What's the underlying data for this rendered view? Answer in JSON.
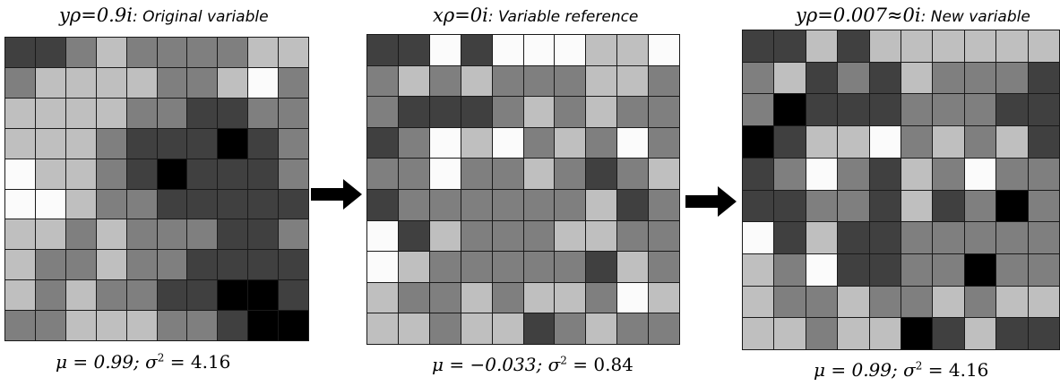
{
  "panels": [
    {
      "symbol": "y",
      "sub": "i",
      "sup": "ρ=0.9",
      "label": ": Original variable",
      "stats_mu": "μ = 0.99; ",
      "stats_sigma": "σ",
      "stats_sigma_sup": "2",
      "stats_sigma_rest": " = 4.16",
      "grid": [
        [
          4,
          4,
          3,
          2,
          3,
          3,
          3,
          3,
          2,
          2
        ],
        [
          3,
          2,
          2,
          2,
          2,
          3,
          3,
          2,
          1,
          3
        ],
        [
          2,
          2,
          2,
          2,
          3,
          3,
          4,
          4,
          3,
          3
        ],
        [
          2,
          2,
          2,
          3,
          4,
          4,
          4,
          5,
          4,
          3
        ],
        [
          1,
          2,
          2,
          3,
          4,
          5,
          4,
          4,
          4,
          3
        ],
        [
          1,
          1,
          2,
          3,
          3,
          4,
          4,
          4,
          4,
          4
        ],
        [
          2,
          2,
          3,
          2,
          3,
          3,
          3,
          4,
          4,
          3
        ],
        [
          2,
          3,
          3,
          2,
          3,
          3,
          4,
          4,
          4,
          4
        ],
        [
          2,
          3,
          2,
          3,
          3,
          4,
          4,
          5,
          5,
          4
        ],
        [
          3,
          3,
          2,
          2,
          2,
          3,
          3,
          4,
          5,
          5
        ]
      ]
    },
    {
      "symbol": "x",
      "sub": "i",
      "sup": "ρ=0",
      "label": ": Variable reference",
      "stats_mu": "μ = −0.033; ",
      "stats_sigma": "σ",
      "stats_sigma_sup": "2",
      "stats_sigma_rest": " = 0.84",
      "grid": [
        [
          4,
          4,
          1,
          4,
          1,
          1,
          1,
          2,
          2,
          1
        ],
        [
          3,
          2,
          3,
          2,
          3,
          3,
          3,
          2,
          2,
          3
        ],
        [
          3,
          4,
          4,
          4,
          3,
          2,
          3,
          2,
          3,
          3
        ],
        [
          4,
          3,
          1,
          2,
          1,
          3,
          2,
          3,
          1,
          3
        ],
        [
          3,
          3,
          1,
          3,
          3,
          2,
          3,
          4,
          3,
          2
        ],
        [
          4,
          3,
          3,
          3,
          3,
          3,
          3,
          2,
          4,
          3
        ],
        [
          1,
          4,
          2,
          3,
          3,
          3,
          2,
          2,
          3,
          3
        ],
        [
          1,
          2,
          3,
          3,
          3,
          3,
          3,
          4,
          2,
          3
        ],
        [
          2,
          3,
          3,
          2,
          3,
          2,
          2,
          3,
          1,
          2
        ],
        [
          2,
          2,
          3,
          2,
          2,
          4,
          3,
          2,
          3,
          3
        ]
      ]
    },
    {
      "symbol": "y",
      "sub": "i",
      "sup": "ρ=0.007≈0",
      "label": ": New variable",
      "stats_mu": "μ = 0.99; ",
      "stats_sigma": "σ",
      "stats_sigma_sup": "2",
      "stats_sigma_rest": " = 4.16",
      "grid": [
        [
          4,
          4,
          2,
          4,
          2,
          2,
          2,
          2,
          2,
          2
        ],
        [
          3,
          2,
          4,
          3,
          4,
          2,
          3,
          3,
          3,
          4
        ],
        [
          3,
          5,
          4,
          4,
          4,
          3,
          3,
          3,
          4,
          4
        ],
        [
          5,
          4,
          2,
          2,
          1,
          3,
          2,
          3,
          2,
          4
        ],
        [
          4,
          3,
          1,
          3,
          4,
          2,
          3,
          1,
          3,
          3
        ],
        [
          4,
          4,
          3,
          3,
          4,
          2,
          4,
          3,
          5,
          3
        ],
        [
          1,
          4,
          2,
          4,
          4,
          3,
          3,
          3,
          3,
          3
        ],
        [
          2,
          3,
          1,
          4,
          4,
          3,
          3,
          5,
          3,
          3
        ],
        [
          2,
          3,
          3,
          2,
          3,
          3,
          2,
          3,
          2,
          2
        ],
        [
          2,
          2,
          3,
          2,
          2,
          5,
          4,
          2,
          4,
          4
        ]
      ]
    }
  ],
  "palette": {
    "1": "#fbfbfb",
    "2": "#bfbfbf",
    "3": "#7f7f7f",
    "4": "#404040",
    "5": "#000000"
  },
  "arrow_color": "#000000"
}
